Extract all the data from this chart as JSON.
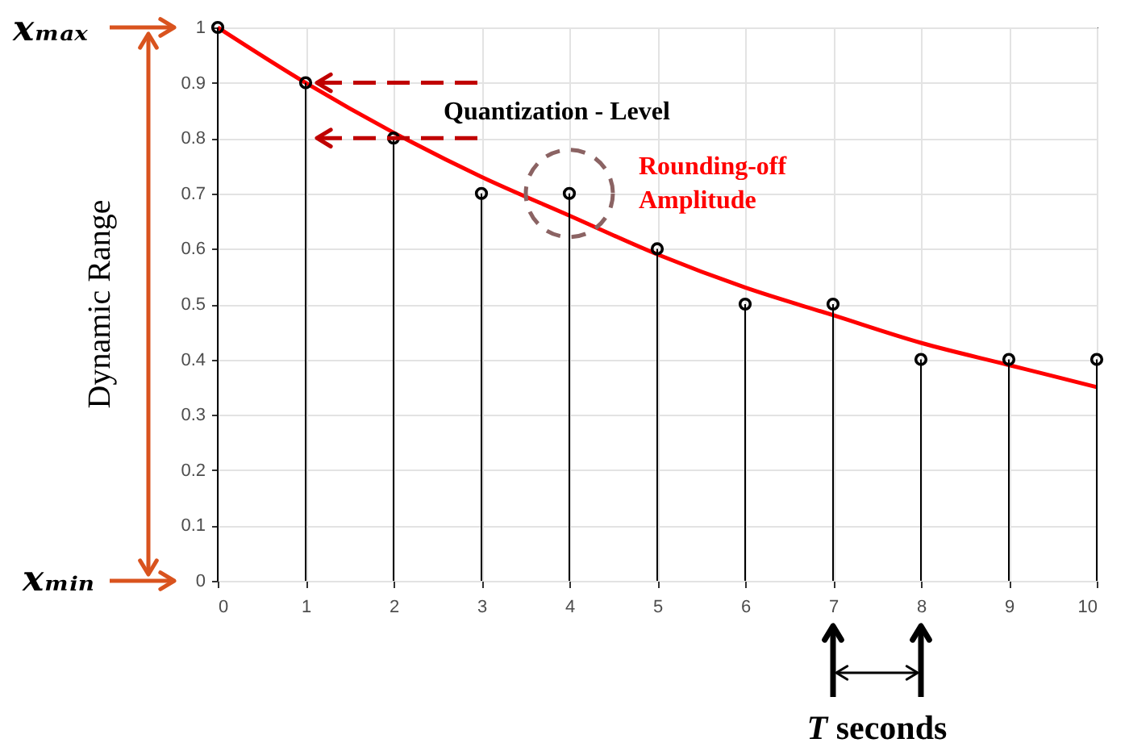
{
  "chart_data": {
    "type": "lollipop",
    "x": [
      0,
      1,
      2,
      3,
      4,
      5,
      6,
      7,
      8,
      9,
      10
    ],
    "series": [
      {
        "type": "lollipop",
        "color": "#000000",
        "marker": "circle",
        "values": [
          1,
          0.9,
          0.8,
          0.7,
          0.7,
          0.6,
          0.5,
          0.5,
          0.4,
          0.4,
          0.4
        ]
      },
      {
        "type": "line",
        "color": "#ff0000",
        "x": [
          0,
          1,
          2,
          3,
          4,
          5,
          6,
          7,
          8,
          9,
          10
        ],
        "values": [
          1,
          0.9,
          0.81,
          0.73,
          0.66,
          0.59,
          0.53,
          0.48,
          0.43,
          0.39,
          0.35
        ]
      }
    ],
    "xlim": [
      0,
      10
    ],
    "xticks": [
      0,
      1,
      2,
      3,
      4,
      5,
      6,
      7,
      8,
      9,
      10
    ],
    "ylim": [
      0,
      1
    ],
    "yticks": [
      0,
      0.1,
      0.2,
      0.3,
      0.4,
      0.5,
      0.6,
      0.7,
      0.8,
      0.9,
      1
    ],
    "grid": true,
    "annotations": [
      "xₘₐₓ",
      "xₘᵢₙ",
      "Dynamic Range",
      {
        "text": "Quantization - Level",
        "x": 1,
        "y": 0.9
      },
      {
        "text": "Rounding-off Amplitude",
        "x": 4,
        "y": 0.7
      },
      "T seconds"
    ]
  }
}
